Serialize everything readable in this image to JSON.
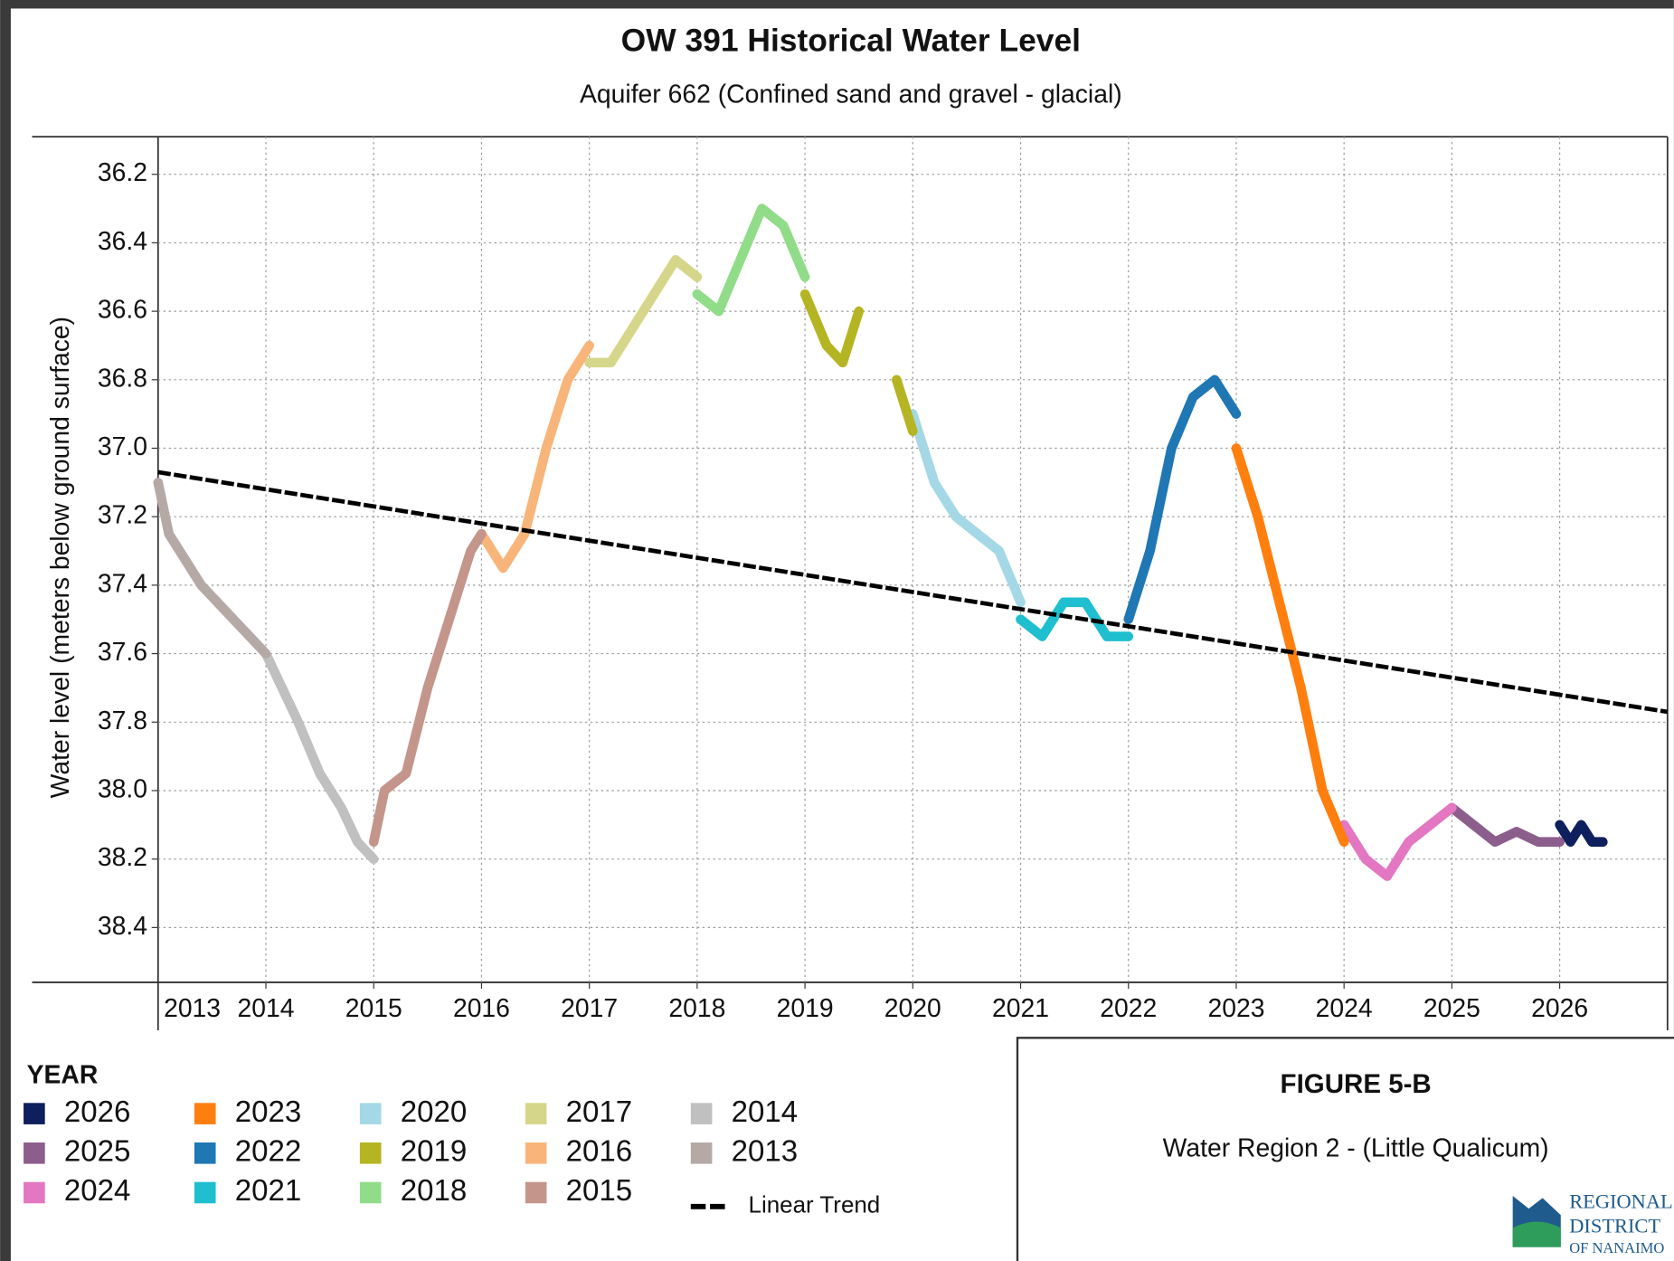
{
  "chart_data": {
    "type": "line",
    "title": "OW 391 Historical Water Level",
    "subtitle": "Aquifer 662 (Confined sand and gravel - glacial)",
    "y_label": "Water level (meters below ground surface)",
    "legend_title": "YEAR",
    "legend": "bottom-left",
    "grid": true,
    "y_inverted": true,
    "xlim": [
      2013,
      2027
    ],
    "xticks": [
      2013,
      2014,
      2015,
      2016,
      2017,
      2018,
      2019,
      2020,
      2021,
      2022,
      2023,
      2024,
      2025,
      2026
    ],
    "ylim": [
      36.09,
      38.56
    ],
    "yticks": [
      36.2,
      36.4,
      36.6,
      36.8,
      {
        "value": 37,
        "label": "37.0"
      },
      37.2,
      37.4,
      37.6,
      37.8,
      {
        "value": 38,
        "label": "38.0"
      },
      38.2,
      38.4
    ],
    "series": [
      {
        "name": "2026",
        "color": "#0d1f5c",
        "x": [
          2026.0,
          2026.1,
          2026.2,
          2026.3,
          2026.4
        ],
        "values": [
          38.1,
          38.15,
          38.1,
          38.15,
          38.15
        ]
      },
      {
        "name": "2025",
        "color": "#8c5e8c",
        "x": [
          2025.0,
          2025.2,
          2025.4,
          2025.6,
          2025.8,
          2026.0
        ],
        "values": [
          38.05,
          38.1,
          38.15,
          38.12,
          38.15,
          38.15
        ]
      },
      {
        "name": "2024",
        "color": "#e377c2",
        "x": [
          2024.0,
          2024.2,
          2024.4,
          2024.6,
          2024.8,
          2025.0
        ],
        "values": [
          38.1,
          38.2,
          38.25,
          38.15,
          38.1,
          38.05
        ]
      },
      {
        "name": "2023",
        "color": "#ff7f0e",
        "x": [
          2023.0,
          2023.2,
          2023.4,
          2023.6,
          2023.8,
          2024.0
        ],
        "values": [
          37.0,
          37.2,
          37.45,
          37.7,
          38.0,
          38.15
        ]
      },
      {
        "name": "2022",
        "color": "#1f77b4",
        "x": [
          2022.0,
          2022.2,
          2022.4,
          2022.6,
          2022.8,
          2023.0
        ],
        "values": [
          37.5,
          37.3,
          37.0,
          36.85,
          36.8,
          36.9
        ]
      },
      {
        "name": "2021",
        "color": "#1fbfcf",
        "x": [
          2021.0,
          2021.2,
          2021.4,
          2021.6,
          2021.8,
          2022.0
        ],
        "values": [
          37.5,
          37.55,
          37.45,
          37.45,
          37.55,
          37.55
        ]
      },
      {
        "name": "2020",
        "color": "#a5d8e6",
        "x": [
          2020.0,
          2020.2,
          2020.4,
          2020.6,
          2020.8,
          2021.0
        ],
        "values": [
          36.9,
          37.1,
          37.2,
          37.25,
          37.3,
          37.45
        ]
      },
      {
        "name": "2019",
        "color": "#b5b524",
        "x": [
          2019.0,
          2019.2,
          2019.35,
          2019.5,
          2019.7,
          2019.85,
          2020.0
        ],
        "values": [
          36.55,
          36.7,
          36.75,
          36.6,
          null,
          36.8,
          36.95
        ]
      },
      {
        "name": "2018",
        "color": "#90dc88",
        "x": [
          2018.0,
          2018.2,
          2018.4,
          2018.6,
          2018.8,
          2019.0
        ],
        "values": [
          36.55,
          36.6,
          36.45,
          36.3,
          36.35,
          36.5
        ]
      },
      {
        "name": "2017",
        "color": "#d6d68a",
        "x": [
          2017.0,
          2017.2,
          2017.4,
          2017.6,
          2017.8,
          2018.0
        ],
        "values": [
          36.75,
          36.75,
          36.65,
          36.55,
          36.45,
          36.5
        ]
      },
      {
        "name": "2016",
        "color": "#f8b57a",
        "x": [
          2016.0,
          2016.2,
          2016.4,
          2016.6,
          2016.8,
          2017.0
        ],
        "values": [
          37.25,
          37.35,
          37.25,
          37.0,
          36.8,
          36.7
        ]
      },
      {
        "name": "2015",
        "color": "#c4958b",
        "x": [
          2015.0,
          2015.1,
          2015.3,
          2015.5,
          2015.7,
          2015.9,
          2016.0
        ],
        "values": [
          38.15,
          38.0,
          37.95,
          37.7,
          37.5,
          37.3,
          37.25
        ]
      },
      {
        "name": "2014",
        "color": "#c0c0c0",
        "x": [
          2014.0,
          2014.3,
          2014.5,
          2014.7,
          2014.85,
          2015.0
        ],
        "values": [
          37.6,
          37.8,
          37.95,
          38.05,
          38.15,
          38.2
        ]
      },
      {
        "name": "2013",
        "color": "#b5a9a6",
        "x": [
          2013.0,
          2013.1,
          2013.4,
          2013.7,
          2014.0
        ],
        "values": [
          37.1,
          37.25,
          37.4,
          37.5,
          37.6
        ]
      },
      {
        "name": "Linear Trend",
        "color": "#000000",
        "dashed": true,
        "x": [
          2013,
          2027
        ],
        "values": [
          37.07,
          37.77
        ]
      }
    ]
  },
  "figure_box": {
    "title": "FIGURE 5-B",
    "subtitle": "Water Region 2 - (Little Qualicum)",
    "logo": [
      "REGIONAL",
      "DISTRICT",
      "OF NANAIMO"
    ]
  }
}
